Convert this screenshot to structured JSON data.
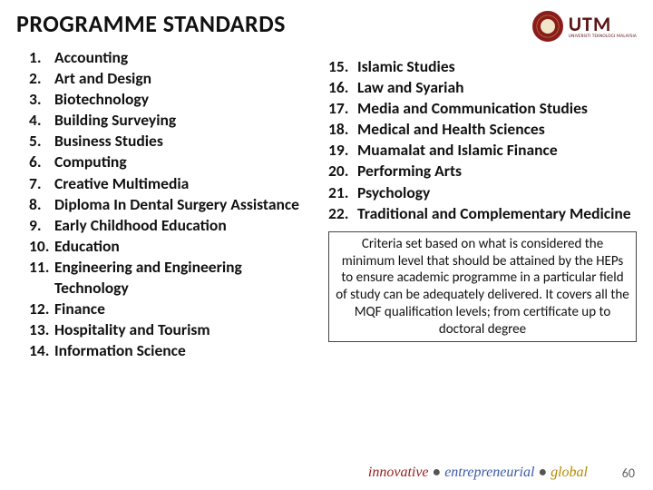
{
  "title": "PROGRAMME STANDARDS",
  "logo": {
    "main": "UTM",
    "sub": "UNIVERSITI TEKNOLOGI MALAYSIA"
  },
  "left_items": [
    {
      "n": "1.",
      "t": "Accounting"
    },
    {
      "n": "2.",
      "t": "Art and Design"
    },
    {
      "n": "3.",
      "t": "Biotechnology"
    },
    {
      "n": "4.",
      "t": "Building Surveying"
    },
    {
      "n": "5.",
      "t": "Business Studies"
    },
    {
      "n": "6.",
      "t": "Computing"
    },
    {
      "n": "7.",
      "t": "Creative Multimedia"
    },
    {
      "n": "8.",
      "t": "Diploma In Dental Surgery Assistance"
    },
    {
      "n": "9.",
      "t": "Early Childhood Education"
    },
    {
      "n": "10.",
      "t": "Education"
    },
    {
      "n": "11.",
      "t": "Engineering and Engineering Technology"
    },
    {
      "n": "12.",
      "t": "Finance"
    },
    {
      "n": "13.",
      "t": "Hospitality and Tourism"
    },
    {
      "n": "14.",
      "t": "Information Science"
    }
  ],
  "right_items": [
    {
      "n": "15.",
      "t": "Islamic Studies"
    },
    {
      "n": "16.",
      "t": "Law and Syariah"
    },
    {
      "n": "17.",
      "t": "Media and Communication Studies"
    },
    {
      "n": "18.",
      "t": "Medical and Health Sciences"
    },
    {
      "n": "19.",
      "t": "Muamalat and Islamic Finance"
    },
    {
      "n": "20.",
      "t": "Performing Arts"
    },
    {
      "n": "21.",
      "t": "Psychology"
    },
    {
      "n": "22.",
      "t": "Traditional and Complementary Medicine"
    }
  ],
  "criteria": "Criteria set based on what is considered the minimum level that should be attained by the HEPs to ensure academic programme in a particular field of study can be adequately delivered. It covers all the MQF qualification levels; from certificate up to doctoral degree",
  "tagline": {
    "w1": "innovative",
    "w2": "entrepreneurial",
    "w3": "global"
  },
  "page_number": "60",
  "colors": {
    "innovative": "#9a1c1c",
    "entrepreneurial": "#3a5aa8",
    "global": "#b58b00"
  }
}
